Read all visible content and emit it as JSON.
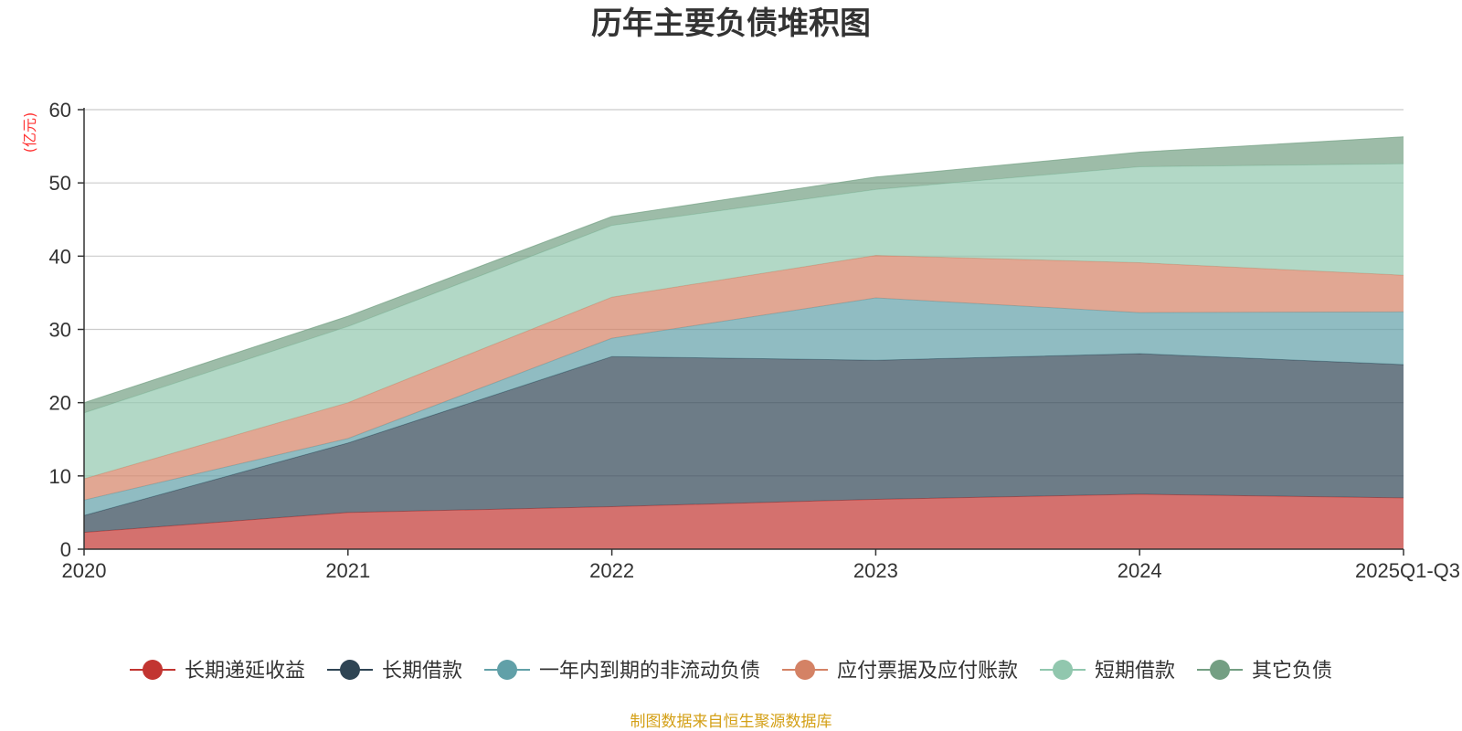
{
  "chart_data": {
    "type": "area",
    "stacked": true,
    "title": "历年主要负债堆积图",
    "unit_label": "(亿元)",
    "categories": [
      "2020",
      "2021",
      "2022",
      "2023",
      "2024",
      "2025Q1-Q3"
    ],
    "ylim": [
      0,
      60
    ],
    "yticks": [
      0,
      10,
      20,
      30,
      40,
      50,
      60
    ],
    "grid": true,
    "legend_position": "bottom",
    "series": [
      {
        "name": "长期递延收益",
        "values": [
          2.3,
          5.0,
          5.8,
          6.8,
          7.5,
          7.0
        ],
        "color": "#c23531"
      },
      {
        "name": "长期借款",
        "values": [
          2.3,
          9.5,
          20.5,
          19.0,
          19.2,
          18.2
        ],
        "color": "#2f4554"
      },
      {
        "name": "一年内到期的非流动负债",
        "values": [
          2.1,
          0.6,
          2.5,
          8.5,
          5.6,
          7.2
        ],
        "color": "#61a0a8"
      },
      {
        "name": "应付票据及应付账款",
        "values": [
          2.9,
          4.9,
          5.6,
          5.8,
          6.8,
          5.0
        ],
        "color": "#d48265"
      },
      {
        "name": "短期借款",
        "values": [
          9.0,
          10.4,
          9.8,
          9.0,
          13.1,
          15.2
        ],
        "color": "#91c7ae"
      },
      {
        "name": "其它负债",
        "values": [
          1.4,
          1.4,
          1.2,
          1.7,
          2.0,
          3.7
        ],
        "color": "#749f83"
      }
    ]
  },
  "footer": {
    "source": "制图数据来自恒生聚源数据库"
  }
}
